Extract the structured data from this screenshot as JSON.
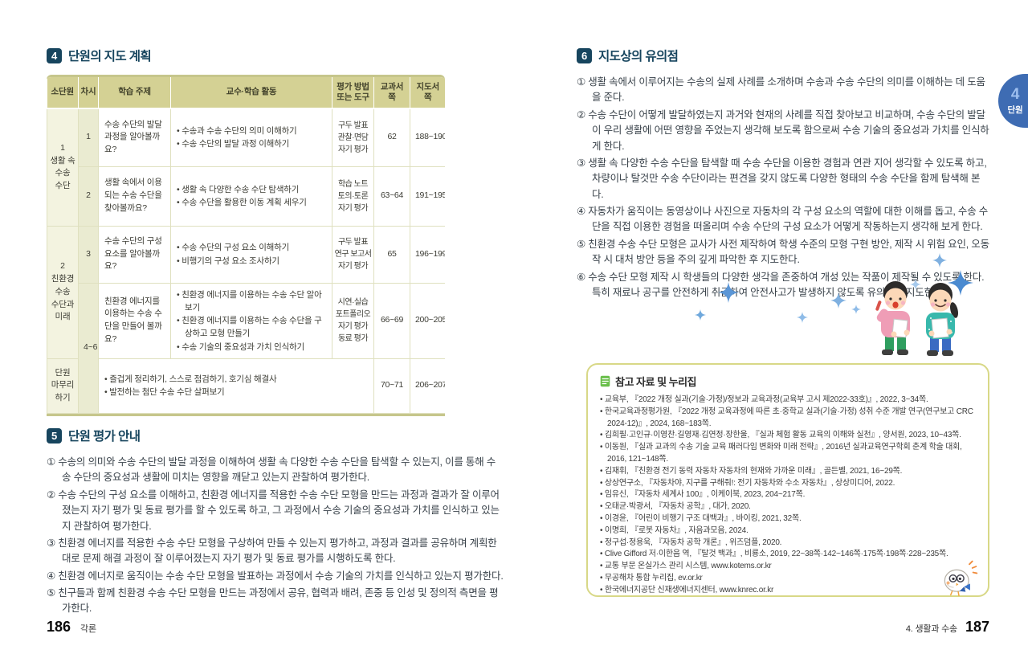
{
  "colors": {
    "accent_navy": "#17455e",
    "table_header_olive": "#d4d194",
    "table_border_olive": "#dfe0bf",
    "side_tab_blue": "#3e6cb3",
    "reference_box_border": "#d8d887",
    "doc_icon_green": "#6abf4b",
    "star_blue": "#4a8ad0"
  },
  "left_page": {
    "section_plan": {
      "badge": "4",
      "title": "단원의 지도 계획",
      "table": {
        "headers": [
          "소단원",
          "차시",
          "학습 주제",
          "교수·학습 활동",
          "평가 방법\n또는 도구",
          "교과서\n쪽",
          "지도서\n쪽"
        ],
        "subunits": [
          "1\n생활 속\n수송\n수단",
          "2\n친환경\n수송\n수단과\n미래",
          "단원\n마무리\n하기"
        ],
        "rows": [
          {
            "session": "1",
            "topic": "수송 수단의 발달 과정을 알아볼까요?",
            "activities": [
              "• 수송과 수송 수단의 의미 이해하기",
              "• 수송 수단의 발달 과정 이해하기"
            ],
            "evaluation": "구두 발표\n관찰·면담\n자기 평가",
            "textbook_pages": "62",
            "guide_pages": "188~190"
          },
          {
            "session": "2",
            "topic": "생활 속에서 이용되는 수송 수단을 찾아볼까요?",
            "activities": [
              "• 생활 속 다양한 수송 수단 탐색하기",
              "• 수송 수단을 활용한 이동 계획 세우기"
            ],
            "evaluation": "학습 노트\n토의·토론\n자기 평가",
            "textbook_pages": "63~64",
            "guide_pages": "191~195"
          },
          {
            "session": "3",
            "topic": "수송 수단의 구성 요소를 알아볼까요?",
            "activities": [
              "• 수송 수단의 구성 요소 이해하기",
              "• 비행기의 구성 요소 조사하기"
            ],
            "evaluation": "구두 발표\n연구 보고서\n자기 평가",
            "textbook_pages": "65",
            "guide_pages": "196~199"
          },
          {
            "session": "4~6",
            "topic": "친환경 에너지를 이용하는 수송 수단을 만들어 볼까요?",
            "activities": [
              "• 친환경 에너지를 이용하는 수송 수단 알아보기",
              "• 친환경 에너지를 이용하는 수송 수단을 구상하고 모형 만들기",
              "• 수송 기술의 중요성과 가치 인식하기"
            ],
            "evaluation": "시연·실습\n포트폴리오\n자기 평가\n동료 평가",
            "textbook_pages": "66~69",
            "guide_pages": "200~205"
          },
          {
            "summary_lines": [
              "• 즐겁게 정리하기, 스스로 점검하기, 호기심 해결사",
              "• 발전하는 첨단 수송 수단 살펴보기"
            ],
            "textbook_pages": "70~71",
            "guide_pages": "206~207"
          }
        ]
      }
    },
    "section_eval": {
      "badge": "5",
      "title": "단원 평가 안내",
      "items": [
        "① 수송의 의미와 수송 수단의 발달 과정을 이해하여 생활 속 다양한 수송 수단을 탐색할 수 있는지, 이를 통해 수송 수단의 중요성과 생활에 미치는 영향을 깨닫고 있는지 관찰하여 평가한다.",
        "② 수송 수단의 구성 요소를 이해하고, 친환경 에너지를 적용한 수송 수단 모형을 만드는 과정과 결과가 잘 이루어졌는지 자기 평가 및 동료 평가를 할 수 있도록 하고, 그 과정에서 수송 기술의 중요성과 가치를 인식하고 있는지 관찰하여 평가한다.",
        "③ 친환경 에너지를 적용한 수송 수단 모형을 구상하여 만들 수 있는지 평가하고, 과정과 결과를 공유하며 계획한 대로 문제 해결 과정이 잘 이루어졌는지 자기 평가 및 동료 평가를 시행하도록 한다.",
        "④ 친환경 에너지로 움직이는 수송 수단 모형을 발표하는 과정에서 수송 기술의 가치를 인식하고 있는지 평가한다.",
        "⑤ 친구들과 함께 친환경 수송 수단 모형을 만드는 과정에서 공유, 협력과 배려, 존중 등 인성 및 정의적 측면을 평가한다."
      ]
    },
    "footer": {
      "page_number": "186",
      "section_label": "각론"
    }
  },
  "right_page": {
    "section_notes": {
      "badge": "6",
      "title": "지도상의 유의점",
      "items": [
        "① 생활 속에서 이루어지는 수송의 실제 사례를 소개하며 수송과 수송 수단의 의미를 이해하는 데 도움을 준다.",
        "② 수송 수단이 어떻게 발달하였는지 과거와 현재의 사례를 직접 찾아보고 비교하며, 수송 수단의 발달이 우리 생활에 어떤 영향을 주었는지 생각해 보도록 함으로써 수송 기술의 중요성과 가치를 인식하게 한다.",
        "③ 생활 속 다양한 수송 수단을 탐색할 때 수송 수단을 이용한 경험과 연관 지어 생각할 수 있도록 하고, 차량이나 탈것만 수송 수단이라는 편견을 갖지 않도록 다양한 형태의 수송 수단을 함께 탐색해 본다.",
        "④ 자동차가 움직이는 동영상이나 사진으로 자동차의 각 구성 요소의 역할에 대한 이해를 돕고, 수송 수단을 직접 이용한 경험을 떠올리며 수송 수단의 구성 요소가 어떻게 작동하는지 생각해 보게 한다.",
        "⑤ 친환경 수송 수단 모형은 교사가 사전 제작하여 학생 수준의 모형 구현 방안, 제작 시 위험 요인, 오동작 시 대처 방안 등을 주의 깊게 파악한 후 지도한다.",
        "⑥ 수송 수단 모형 제작 시 학생들의 다양한 생각을 존중하여 개성 있는 작품이 제작될 수 있도록 한다. 특히 재료나 공구를 안전하게 취급하여 안전사고가 발생하지 않도록 유의하여 지도한다."
      ]
    },
    "side_tab": {
      "number": "4",
      "label": "단원"
    },
    "reference_box": {
      "icon": "document-icon",
      "title": "참고 자료 및 누리집",
      "items": [
        "• 교육부, 『2022 개정 실과(기술·가정)/정보과 교육과정(교육부 고시 제2022-33호)』, 2022, 3~34쪽.",
        "• 한국교육과정평가원, 『2022 개정 교육과정에 따른 초·중학교 실과(기술·가정) 성취 수준 개발 연구(연구보고 CRC 2024-12)』, 2024, 168~183쪽.",
        "• 김희필·고인규·이영찬·길영재·김연정·장한울, 『실과 체험 활동 교육의 이해와 실천』, 양서원, 2023, 10~43쪽.",
        "• 이동원, 『실과 교과의 수송 기술 교육 패러다임 변화와 미래 전략』, 2016년 실과교육연구학회 춘계 학술 대회, 2016, 121~148쪽.",
        "• 김재휘, 『친환경 전기 동력 자동차 자동차의 현재와 가까운 미래』, 골든벨, 2021, 16~29쪽.",
        "• 상상연구소, 『자동차야, 지구를 구해줘!: 전기 자동차와 수소 자동차』, 상상미디어, 2022.",
        "• 임유신, 『자동차 세계사 100』, 이케이북, 2023, 204~217쪽.",
        "• 오태균·박광서, 『자동차 공학』, 대가, 2020.",
        "• 이경윤, 『어린이 비행기 구조 대백과』, 바이킹, 2021, 32쪽.",
        "• 이명희, 『로봇 자동차』, 자음과모음, 2024.",
        "• 정구섭·정용욱, 『자동차 공학 개론』, 위즈덤플, 2020.",
        "• Clive Gifford 저·이한음 역, 『탈것 백과』, 비룡소, 2019, 22~38쪽·142~146쪽·175쪽·198쪽·228~235쪽.",
        "• 교통 부문 온실가스 관리 시스템, www.kotems.or.kr",
        "• 무공해차 통합 누리집, ev.or.kr",
        "• 한국에너지공단 신재생에너지센터, www.knrec.or.kr"
      ]
    },
    "footer": {
      "section_label": "4. 생활과 수송",
      "page_number": "187"
    }
  }
}
